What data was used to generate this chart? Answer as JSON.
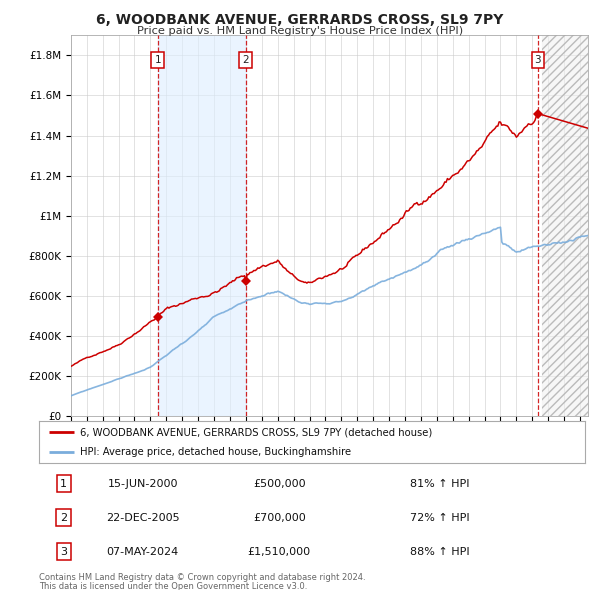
{
  "title": "6, WOODBANK AVENUE, GERRARDS CROSS, SL9 7PY",
  "subtitle": "Price paid vs. HM Land Registry's House Price Index (HPI)",
  "property_label": "6, WOODBANK AVENUE, GERRARDS CROSS, SL9 7PY (detached house)",
  "hpi_label": "HPI: Average price, detached house, Buckinghamshire",
  "footer1": "Contains HM Land Registry data © Crown copyright and database right 2024.",
  "footer2": "This data is licensed under the Open Government Licence v3.0.",
  "transactions": [
    {
      "num": 1,
      "date": "15-JUN-2000",
      "price": 500000,
      "price_str": "£500,000",
      "pct": "81% ↑ HPI",
      "year": 2000.46
    },
    {
      "num": 2,
      "date": "22-DEC-2005",
      "price": 700000,
      "price_str": "£700,000",
      "pct": "72% ↑ HPI",
      "year": 2005.98
    },
    {
      "num": 3,
      "date": "07-MAY-2024",
      "price": 1510000,
      "price_str": "£1,510,000",
      "pct": "88% ↑ HPI",
      "year": 2024.35
    }
  ],
  "ylim": [
    0,
    1900000
  ],
  "yticks": [
    0,
    200000,
    400000,
    600000,
    800000,
    1000000,
    1200000,
    1400000,
    1600000,
    1800000
  ],
  "ytick_labels": [
    "£0",
    "£200K",
    "£400K",
    "£600K",
    "£800K",
    "£1M",
    "£1.2M",
    "£1.4M",
    "£1.6M",
    "£1.8M"
  ],
  "xlim_start": 1995.0,
  "xlim_end": 2027.5,
  "xticks": [
    1995,
    1996,
    1997,
    1998,
    1999,
    2000,
    2001,
    2002,
    2003,
    2004,
    2005,
    2006,
    2007,
    2008,
    2009,
    2010,
    2011,
    2012,
    2013,
    2014,
    2015,
    2016,
    2017,
    2018,
    2019,
    2020,
    2021,
    2022,
    2023,
    2024,
    2025,
    2026,
    2027
  ],
  "property_color": "#cc0000",
  "hpi_color": "#7aaddc",
  "vline_color": "#cc0000",
  "shade_color": "#ddeeff",
  "grid_color": "#cccccc",
  "bg_color": "#ffffff",
  "future_start": 2024.58
}
